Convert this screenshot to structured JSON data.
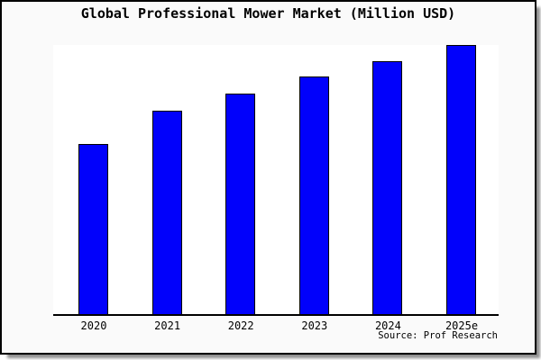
{
  "chart_data": {
    "type": "bar",
    "title": "Global Professional Mower Market (Million USD)",
    "categories": [
      "2020",
      "2021",
      "2022",
      "2023",
      "2024",
      "2025e"
    ],
    "values": [
      63,
      75.5,
      81.8,
      88.2,
      94,
      100
    ],
    "values_note": "y-axis has no ticks or labels; values estimated as percent of tallest bar (2025e = 100)",
    "xlabel": "",
    "ylabel": "",
    "ylim": [
      0,
      100.5
    ],
    "grid": false,
    "legend": null,
    "bar_color": "#0101fb",
    "bar_border_color": "#000000"
  },
  "source_note": "Source: Prof Research",
  "colors": {
    "page_bg": "#ffffff",
    "box_bg": "#fafafa",
    "plot_bg": "#ffffff",
    "frame_border": "#000000",
    "shadow": "#8f8f8f",
    "text": "#000000"
  }
}
